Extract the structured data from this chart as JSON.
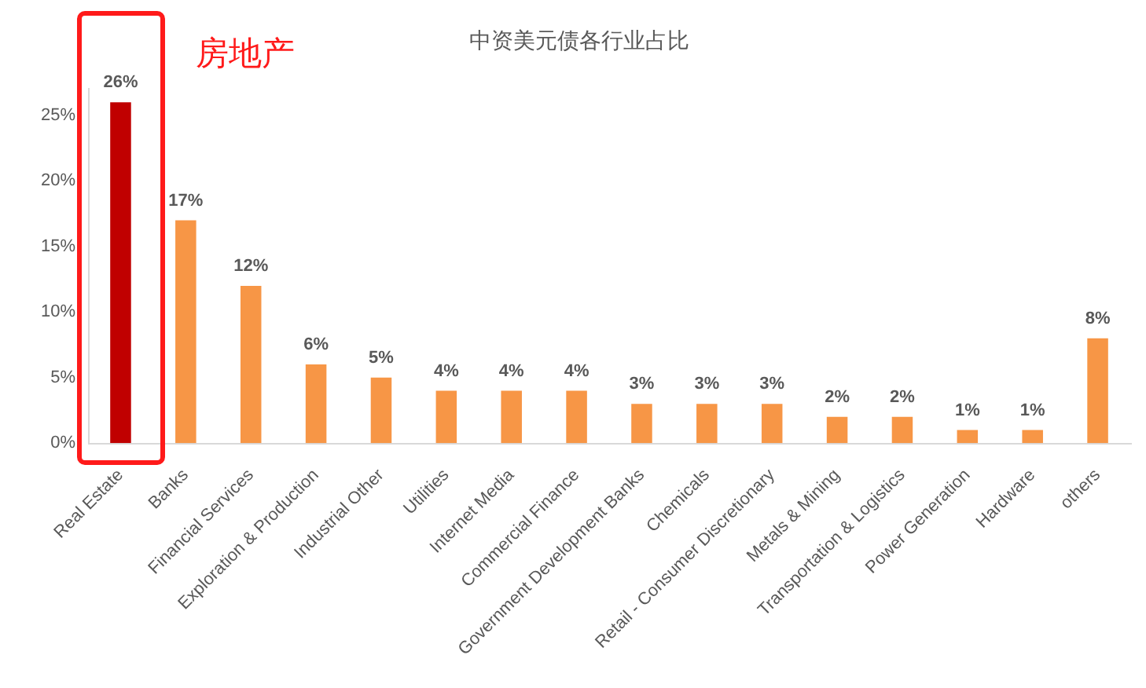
{
  "chart_data": {
    "type": "bar",
    "title": "中资美元债各行业占比",
    "categories": [
      "Real Estate",
      "Banks",
      "Financial Services",
      "Exploration & Production",
      "Industrial Other",
      "Utilities",
      "Internet Media",
      "Commercial Finance",
      "Government Development Banks",
      "Chemicals",
      "Retail - Consumer Discretionary",
      "Metals & Mining",
      "Transportation & Logistics",
      "Power Generation",
      "Hardware",
      "others"
    ],
    "values": [
      26,
      17,
      12,
      6,
      5,
      4,
      4,
      4,
      3,
      3,
      3,
      2,
      2,
      1,
      1,
      8
    ],
    "value_labels": [
      "26%",
      "17%",
      "12%",
      "6%",
      "5%",
      "4%",
      "4%",
      "4%",
      "3%",
      "3%",
      "3%",
      "2%",
      "2%",
      "1%",
      "1%",
      "8%"
    ],
    "colors": [
      "#c00000",
      "#f79646",
      "#f79646",
      "#f79646",
      "#f79646",
      "#f79646",
      "#f79646",
      "#f79646",
      "#f79646",
      "#f79646",
      "#f79646",
      "#f79646",
      "#f79646",
      "#f79646",
      "#f79646",
      "#f79646"
    ],
    "ylim": [
      0,
      27
    ],
    "yticks": [
      {
        "value": 0,
        "label": "0%"
      },
      {
        "value": 5,
        "label": "5%"
      },
      {
        "value": 10,
        "label": "10%"
      },
      {
        "value": 15,
        "label": "15%"
      },
      {
        "value": 20,
        "label": "20%"
      },
      {
        "value": 25,
        "label": "25%"
      }
    ],
    "annotations": [
      {
        "text": "房地产",
        "x": "Real Estate",
        "y": 26
      }
    ]
  }
}
